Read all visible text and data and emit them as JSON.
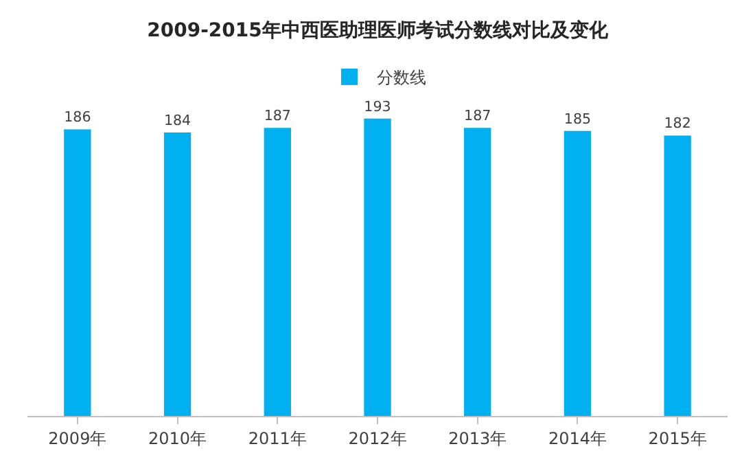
{
  "chart_data": {
    "type": "bar",
    "title": "2009-2015年中西医助理医师考试分数线对比及变化",
    "categories": [
      "2009年",
      "2010年",
      "2011年",
      "2012年",
      "2013年",
      "2014年",
      "2015年"
    ],
    "series": [
      {
        "name": "分数线",
        "color": "#00b0f0",
        "values": [
          186,
          184,
          187,
          193,
          187,
          185,
          182
        ]
      }
    ],
    "data_labels": true,
    "legend": "top",
    "grid": false,
    "tick_labels": "x"
  }
}
